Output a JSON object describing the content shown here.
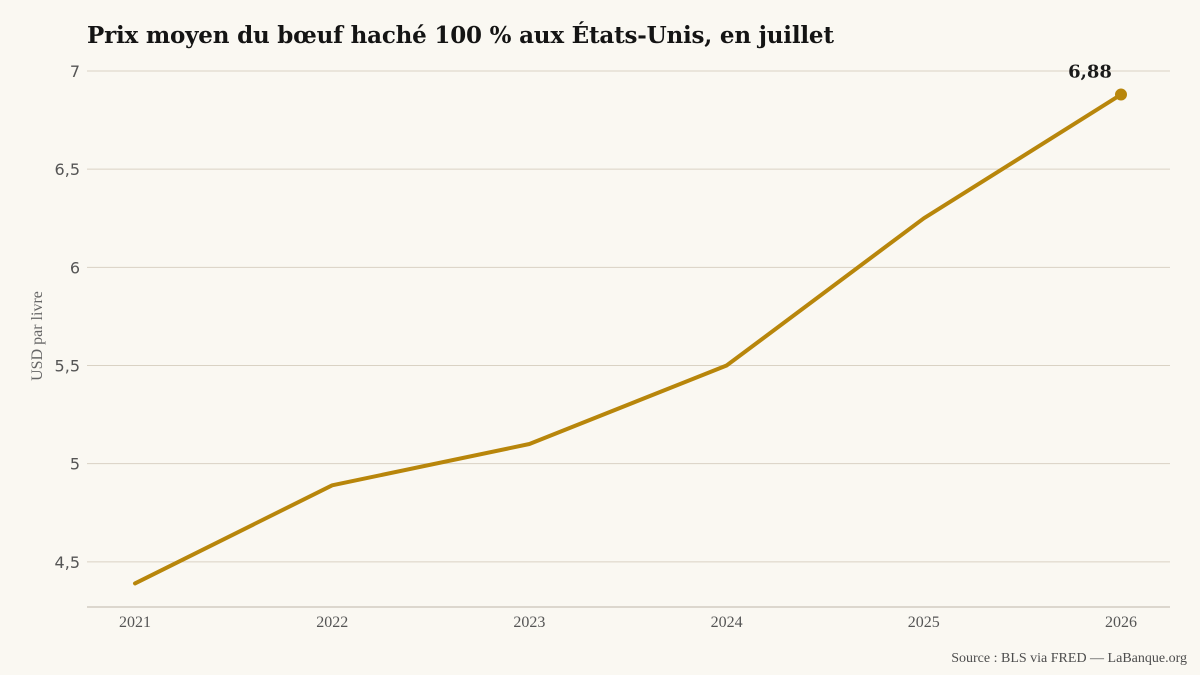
{
  "title": "Prix moyen du bœuf haché 100 % aux États-Unis, en juillet",
  "source": "Source : BLS via FRED — LaBanque.org",
  "colors": {
    "background": "#faf8f2",
    "line": "#b8860b",
    "grid": "#d9d2c4"
  },
  "chart_data": {
    "type": "line",
    "ylabel": "USD par livre",
    "xlabel": "",
    "x": [
      "2021",
      "2022",
      "2023",
      "2024",
      "2025",
      "2026"
    ],
    "series": [
      {
        "values": [
          4.39,
          4.89,
          5.1,
          5.5,
          6.25,
          6.88
        ]
      }
    ],
    "ylim": [
      4.27,
      7.0
    ],
    "yticks": [
      4.5,
      5,
      5.5,
      6,
      6.5,
      7
    ],
    "ytick_labels": [
      "4,5",
      "5",
      "5,5",
      "6",
      "6,5",
      "7"
    ],
    "annotations": [
      {
        "x": "2026",
        "y": 6.88,
        "text": "6,88"
      }
    ],
    "grid": "horizontal",
    "legend": "none"
  }
}
